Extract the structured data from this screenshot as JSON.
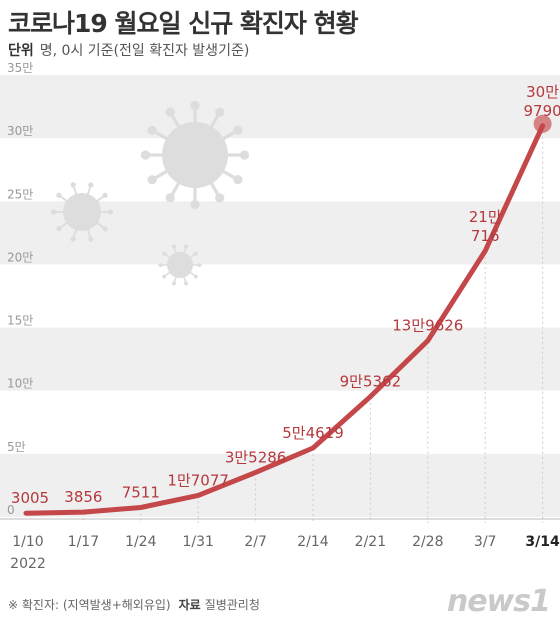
{
  "header": {
    "title": "코로나19 월요일 신규 확진자 현황",
    "unit_label": "단위",
    "unit_text": "명, 0시 기준(전일 확진자 발생기준)"
  },
  "footer": {
    "note": "※ 확진자: (지역발생+해외유입)",
    "source_label": "자료",
    "source_name": "질병관리청"
  },
  "brand": {
    "logo_text": "news1"
  },
  "colors": {
    "line": "#c4474a",
    "label": "#b5393d",
    "band": "#efefef",
    "axis_text": "#999999",
    "last_tick": "#222222"
  },
  "chart_data": {
    "type": "line",
    "x": [
      "1/10",
      "1/17",
      "1/24",
      "1/31",
      "2/7",
      "2/14",
      "2/21",
      "2/28",
      "3/7",
      "3/14"
    ],
    "x_year_label": "2022",
    "values": [
      3005,
      3856,
      7511,
      17077,
      35286,
      54619,
      95362,
      139626,
      210716,
      309790
    ],
    "value_labels": [
      "3005",
      "3856",
      "7511",
      "1만7077",
      "3만5286",
      "5만4619",
      "9만5362",
      "13만9626",
      "21만\n716",
      "30만\n9790"
    ],
    "y_ticks": [
      0,
      50000,
      100000,
      150000,
      200000,
      250000,
      300000,
      350000
    ],
    "y_tick_labels": [
      "0",
      "5만",
      "10만",
      "15만",
      "20만",
      "25만",
      "30만",
      "35만"
    ],
    "ylim": [
      0,
      350000
    ],
    "highlight_last_point": true,
    "background": "alternating horizontal bands",
    "decoration": "virus illustrations"
  }
}
